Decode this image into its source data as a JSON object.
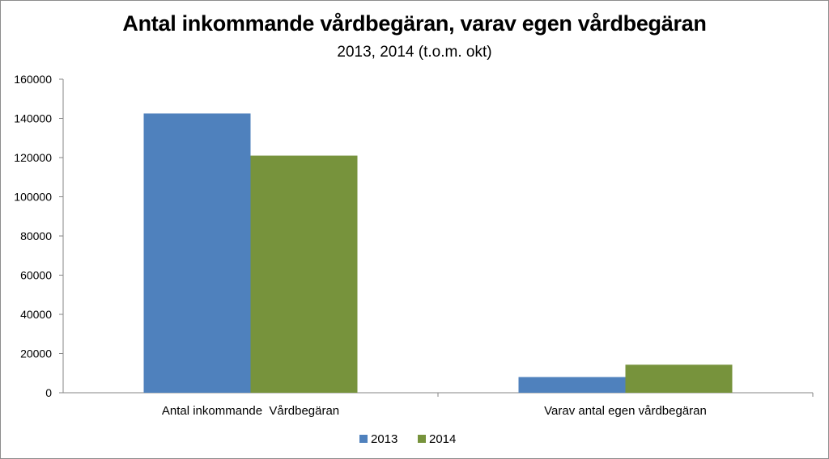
{
  "chart_data": {
    "type": "bar",
    "title": "Antal inkommande vårdbegäran, varav egen vårdbegäran",
    "subtitle": "2013, 2014 (t.o.m. okt)",
    "categories": [
      "Antal inkommande  Vårdbegäran",
      "Varav antal egen vårdbegäran"
    ],
    "series": [
      {
        "name": "2013",
        "color": "#4f81bd",
        "values": [
          142500,
          8000
        ]
      },
      {
        "name": "2014",
        "color": "#77933c",
        "values": [
          121000,
          14300
        ]
      }
    ],
    "y_ticks": [
      "0",
      "20000",
      "40000",
      "60000",
      "80000",
      "100000",
      "120000",
      "140000",
      "160000"
    ],
    "ylim": [
      0,
      160000
    ],
    "grid": false,
    "legend_position": "bottom"
  }
}
